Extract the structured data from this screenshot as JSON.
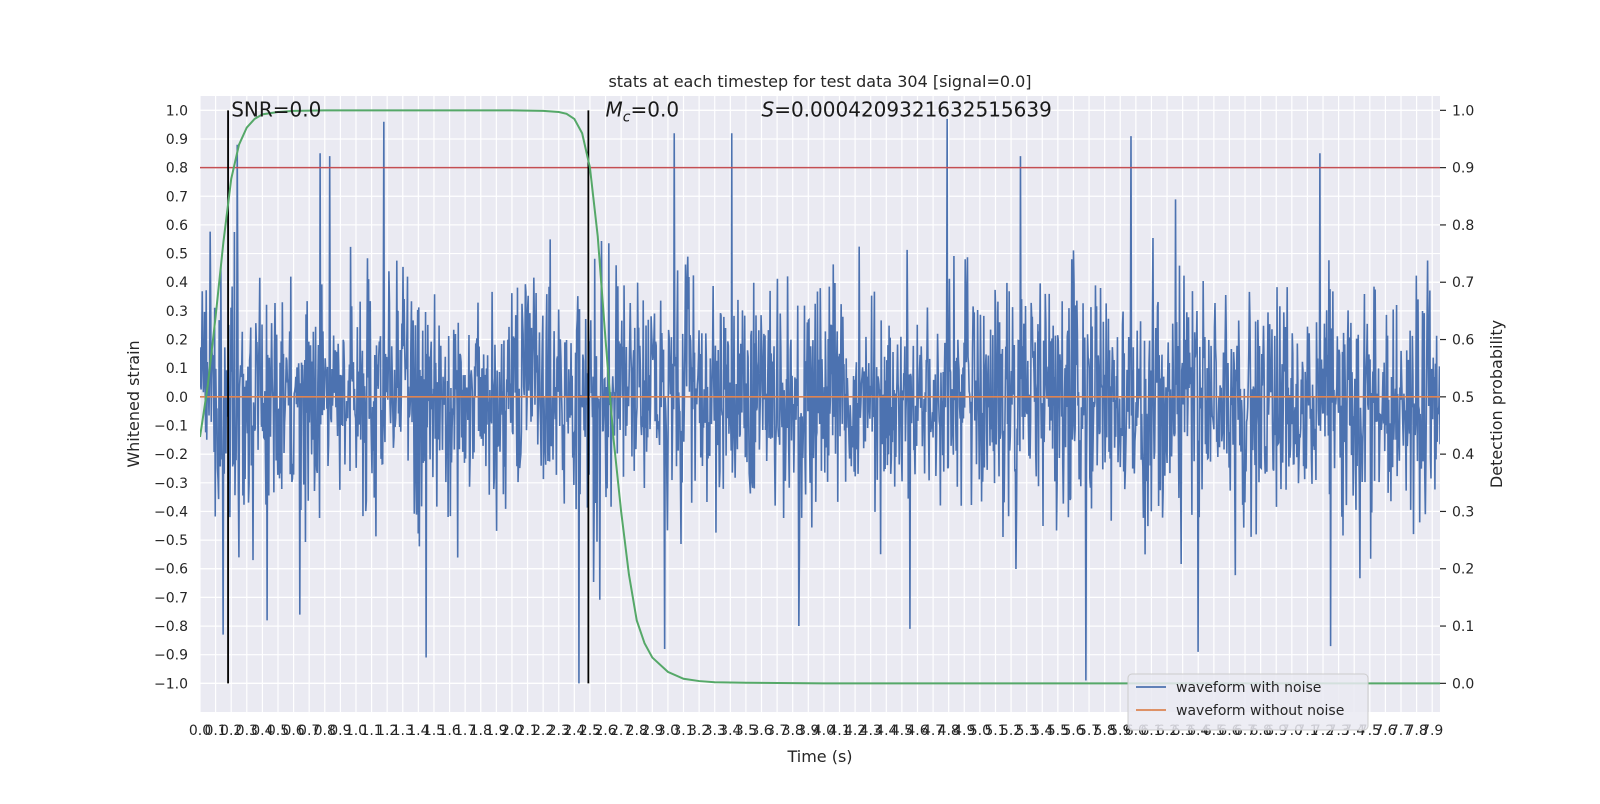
{
  "chart_data": {
    "type": "line",
    "title": "stats at each timestep for test data 304 [signal=0.0]",
    "xlabel": "Time (s)",
    "ylabel_left": "Whitened strain",
    "ylabel_right": "Detection probability",
    "xlim": [
      0.0,
      7.95
    ],
    "ylim_left": [
      -1.1,
      1.05
    ],
    "ylim_right": [
      -0.05,
      1.025
    ],
    "x_ticks": [
      0.0,
      0.1,
      0.2,
      0.3,
      0.4,
      0.5,
      0.6,
      0.7,
      0.8,
      0.9,
      1.0,
      1.1,
      1.2,
      1.3,
      1.4,
      1.5,
      1.6,
      1.7,
      1.8,
      1.9,
      2.0,
      2.1,
      2.2,
      2.3,
      2.4,
      2.5,
      2.6,
      2.7,
      2.8,
      2.9,
      3.0,
      3.1,
      3.2,
      3.3,
      3.4,
      3.5,
      3.6,
      3.7,
      3.8,
      3.9,
      4.0,
      4.1,
      4.2,
      4.3,
      4.4,
      4.5,
      4.6,
      4.7,
      4.8,
      4.9,
      5.0,
      5.1,
      5.2,
      5.3,
      5.4,
      5.5,
      5.6,
      5.7,
      5.8,
      5.9,
      6.0,
      6.1,
      6.2,
      6.3,
      6.4,
      6.5,
      6.6,
      6.7,
      6.8,
      6.9,
      7.0,
      7.1,
      7.2,
      7.3,
      7.4,
      7.5,
      7.6,
      7.7,
      7.8,
      7.9
    ],
    "x_tick_labels": [
      "0.0",
      "0.1",
      "0.2",
      "0.3",
      "0.4",
      "0.5",
      "0.6",
      "0.7",
      "0.8",
      "0.9",
      "1.0",
      "1.1",
      "1.2",
      "1.3",
      "1.4",
      "1.5",
      "1.6",
      "1.7",
      "1.8",
      "1.9",
      "2.0",
      "2.1",
      "2.2",
      "2.3",
      "2.4",
      "2.5",
      "2.6",
      "2.7",
      "2.8",
      "2.9",
      "3.0",
      "3.1",
      "3.2",
      "3.3",
      "3.4",
      "3.5",
      "3.6",
      "3.7",
      "3.8",
      "3.9",
      "4.0",
      "4.1",
      "4.2",
      "4.3",
      "4.4",
      "4.5",
      "4.6",
      "4.7",
      "4.8",
      "4.9",
      "5.0",
      "5.1",
      "5.2",
      "5.3",
      "5.4",
      "5.5",
      "5.6",
      "5.7",
      "5.8",
      "5.9",
      "6.0",
      "6.1",
      "6.2",
      "6.3",
      "6.4",
      "6.5",
      "6.6",
      "6.7",
      "6.8",
      "6.9",
      "7.0",
      "7.1",
      "7.2",
      "7.3",
      "7.4",
      "7.5",
      "7.6",
      "7.7",
      "7.8",
      "7.9"
    ],
    "y_left_ticks": [
      -1.0,
      -0.9,
      -0.8,
      -0.7,
      -0.6,
      -0.5,
      -0.4,
      -0.3,
      -0.2,
      -0.1,
      0.0,
      0.1,
      0.2,
      0.3,
      0.4,
      0.5,
      0.6,
      0.7,
      0.8,
      0.9,
      1.0
    ],
    "y_left_tick_labels": [
      "−1.0",
      "−0.9",
      "−0.8",
      "−0.7",
      "−0.6",
      "−0.5",
      "−0.4",
      "−0.3",
      "−0.2",
      "−0.1",
      "0.0",
      "0.1",
      "0.2",
      "0.3",
      "0.4",
      "0.5",
      "0.6",
      "0.7",
      "0.8",
      "0.9",
      "1.0"
    ],
    "y_right_ticks": [
      0.0,
      0.1,
      0.2,
      0.3,
      0.4,
      0.5,
      0.6,
      0.7,
      0.8,
      0.9,
      1.0
    ],
    "y_right_tick_labels": [
      "0.0",
      "0.1",
      "0.2",
      "0.3",
      "0.4",
      "0.5",
      "0.6",
      "0.7",
      "0.8",
      "0.9",
      "1.0"
    ],
    "grid": true,
    "legend_position": "lower-right",
    "series": [
      {
        "name": "waveform with noise",
        "axis": "left",
        "color": "#4c72b0",
        "noise_std": 0.2,
        "peak_points": [
          {
            "x": 0.15,
            "y": -0.83
          },
          {
            "x": 0.24,
            "y": 0.88
          },
          {
            "x": 0.43,
            "y": -0.78
          },
          {
            "x": 0.64,
            "y": -0.76
          },
          {
            "x": 0.77,
            "y": 0.85
          },
          {
            "x": 0.83,
            "y": 0.84
          },
          {
            "x": 1.18,
            "y": 0.96
          },
          {
            "x": 1.45,
            "y": -0.91
          },
          {
            "x": 2.43,
            "y": -1.0
          },
          {
            "x": 2.98,
            "y": -0.88
          },
          {
            "x": 3.04,
            "y": 0.92
          },
          {
            "x": 3.41,
            "y": 0.92
          },
          {
            "x": 3.84,
            "y": -0.8
          },
          {
            "x": 4.55,
            "y": -0.81
          },
          {
            "x": 4.79,
            "y": 0.97
          },
          {
            "x": 5.26,
            "y": 0.84
          },
          {
            "x": 5.68,
            "y": -0.99
          },
          {
            "x": 5.97,
            "y": 0.91
          },
          {
            "x": 6.4,
            "y": -0.89
          },
          {
            "x": 7.18,
            "y": 0.85
          },
          {
            "x": 7.25,
            "y": -0.87
          }
        ]
      },
      {
        "name": "waveform without noise",
        "axis": "left",
        "color": "#dd8452",
        "x": [
          0.0,
          7.95
        ],
        "y": [
          0.0,
          0.0
        ]
      },
      {
        "name": "",
        "axis": "right",
        "color": "#55a868",
        "x": [
          0.0,
          0.05,
          0.1,
          0.15,
          0.2,
          0.25,
          0.3,
          0.35,
          0.4,
          0.5,
          0.6,
          0.8,
          1.0,
          1.5,
          2.0,
          2.2,
          2.3,
          2.35,
          2.4,
          2.45,
          2.5,
          2.55,
          2.6,
          2.65,
          2.7,
          2.75,
          2.8,
          2.85,
          2.9,
          3.0,
          3.1,
          3.2,
          3.3,
          3.5,
          4.0,
          5.0,
          6.0,
          7.0,
          7.95
        ],
        "y": [
          0.43,
          0.52,
          0.64,
          0.77,
          0.88,
          0.94,
          0.97,
          0.985,
          0.993,
          0.997,
          0.999,
          1.0,
          1.0,
          1.0,
          1.0,
          0.999,
          0.997,
          0.994,
          0.985,
          0.96,
          0.9,
          0.78,
          0.6,
          0.43,
          0.3,
          0.19,
          0.11,
          0.07,
          0.045,
          0.02,
          0.008,
          0.004,
          0.002,
          0.001,
          0.0,
          0.0,
          0.0,
          0.0,
          0.0
        ]
      }
    ],
    "hlines": [
      {
        "axis": "right",
        "y": 0.9,
        "color": "#c44e52"
      }
    ],
    "vlines": [
      {
        "x": 0.18,
        "y_range": [
          0.0,
          1.0
        ],
        "color": "#000000"
      },
      {
        "x": 2.49,
        "y_range": [
          0.0,
          1.0
        ],
        "color": "#000000"
      }
    ],
    "annotations": [
      {
        "text": "SNR=0.0",
        "x": 0.2,
        "y": 1.0
      },
      {
        "text": "M",
        "subscript": "c",
        "suffix": "=0.0",
        "italic": true,
        "x": 2.6,
        "y": 1.0
      },
      {
        "text": "S",
        "suffix": "=0.0004209321632515639",
        "italic": true,
        "x": 3.6,
        "y": 1.0
      }
    ]
  }
}
